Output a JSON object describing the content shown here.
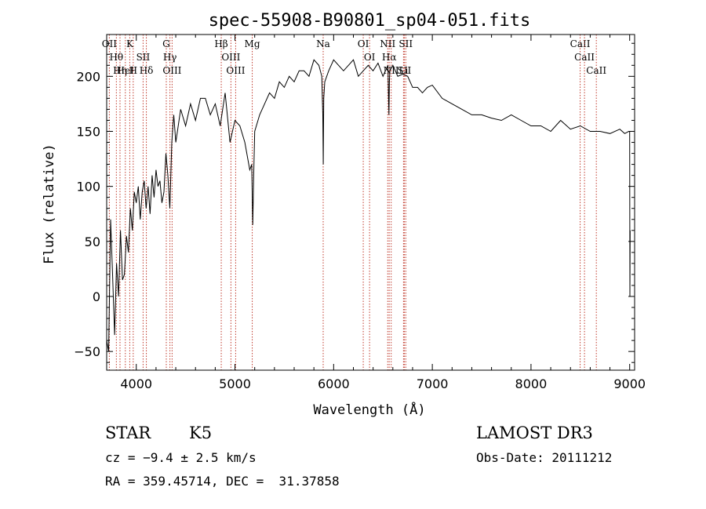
{
  "chart_data": {
    "type": "line",
    "title": "spec-55908-B90801_sp04-051.fits",
    "xlabel": "Wavelength (Å)",
    "ylabel": "Flux (relative)",
    "xlim": [
      3700,
      9050
    ],
    "ylim": [
      -67,
      238
    ],
    "xticks": [
      4000,
      5000,
      6000,
      7000,
      8000,
      9000
    ],
    "yticks": [
      -50,
      0,
      50,
      100,
      150,
      200
    ],
    "series": [
      {
        "name": "spectrum",
        "x": [
          3700,
          3720,
          3740,
          3760,
          3780,
          3800,
          3820,
          3840,
          3860,
          3880,
          3900,
          3920,
          3940,
          3960,
          3980,
          4000,
          4020,
          4040,
          4060,
          4080,
          4100,
          4120,
          4140,
          4160,
          4180,
          4200,
          4220,
          4240,
          4260,
          4280,
          4300,
          4320,
          4340,
          4360,
          4380,
          4400,
          4450,
          4500,
          4550,
          4600,
          4650,
          4700,
          4750,
          4800,
          4850,
          4900,
          4950,
          5000,
          5050,
          5100,
          5150,
          5170,
          5180,
          5190,
          5200,
          5250,
          5300,
          5350,
          5400,
          5450,
          5500,
          5550,
          5600,
          5650,
          5700,
          5750,
          5800,
          5850,
          5880,
          5890,
          5895,
          5900,
          5910,
          5950,
          6000,
          6050,
          6100,
          6150,
          6200,
          6250,
          6300,
          6350,
          6400,
          6450,
          6500,
          6550,
          6560,
          6565,
          6570,
          6600,
          6650,
          6700,
          6750,
          6800,
          6850,
          6900,
          6950,
          7000,
          7100,
          7200,
          7300,
          7400,
          7500,
          7600,
          7700,
          7800,
          7900,
          8000,
          8100,
          8200,
          8300,
          8400,
          8500,
          8600,
          8700,
          8800,
          8900,
          8950,
          8990,
          9000,
          9002,
          9005
        ],
        "y": [
          -40,
          -50,
          70,
          20,
          -35,
          30,
          0,
          60,
          15,
          20,
          55,
          40,
          80,
          60,
          95,
          85,
          100,
          70,
          95,
          105,
          80,
          100,
          75,
          110,
          90,
          115,
          100,
          105,
          85,
          95,
          130,
          110,
          80,
          140,
          165,
          140,
          170,
          155,
          175,
          160,
          180,
          180,
          165,
          175,
          155,
          185,
          140,
          160,
          155,
          140,
          115,
          120,
          65,
          110,
          150,
          165,
          175,
          185,
          180,
          195,
          190,
          200,
          195,
          205,
          205,
          200,
          215,
          210,
          200,
          165,
          120,
          180,
          195,
          205,
          215,
          210,
          205,
          210,
          215,
          200,
          205,
          210,
          205,
          212,
          200,
          210,
          165,
          195,
          205,
          210,
          200,
          202,
          200,
          190,
          190,
          185,
          190,
          192,
          180,
          175,
          170,
          165,
          165,
          162,
          160,
          165,
          160,
          155,
          155,
          150,
          160,
          152,
          155,
          150,
          150,
          148,
          152,
          148,
          150,
          150,
          0,
          60
        ]
      }
    ],
    "lines": [
      {
        "wave": 3727,
        "labels": [
          "OII"
        ]
      },
      {
        "wave": 3798,
        "labels": [
          "Hθ"
        ]
      },
      {
        "wave": 3835,
        "labels": [
          "Hη"
        ]
      },
      {
        "wave": 3889,
        "labels": [
          "HeI"
        ]
      },
      {
        "wave": 3934,
        "labels": [
          "K"
        ]
      },
      {
        "wave": 3969,
        "labels": [
          "H"
        ]
      },
      {
        "wave": 4069,
        "labels": [
          "SII"
        ]
      },
      {
        "wave": 4102,
        "labels": [
          "Hδ"
        ]
      },
      {
        "wave": 4304,
        "labels": [
          "G"
        ]
      },
      {
        "wave": 4341,
        "labels": [
          "Hγ"
        ]
      },
      {
        "wave": 4363,
        "labels": [
          "OIII"
        ]
      },
      {
        "wave": 4861,
        "labels": [
          "Hβ"
        ]
      },
      {
        "wave": 4959,
        "labels": [
          "OIII"
        ]
      },
      {
        "wave": 5007,
        "labels": [
          "OIII"
        ]
      },
      {
        "wave": 5175,
        "labels": [
          "Mg"
        ]
      },
      {
        "wave": 5894,
        "labels": [
          "Na"
        ]
      },
      {
        "wave": 6300,
        "labels": [
          "OI"
        ]
      },
      {
        "wave": 6364,
        "labels": [
          "OI"
        ]
      },
      {
        "wave": 6548,
        "labels": [
          "NII"
        ]
      },
      {
        "wave": 6563,
        "labels": [
          "Hα"
        ]
      },
      {
        "wave": 6583,
        "labels": [
          "NII"
        ]
      },
      {
        "wave": 6708,
        "labels": [
          "Li"
        ]
      },
      {
        "wave": 6716,
        "labels": [
          "SII"
        ]
      },
      {
        "wave": 6731,
        "labels": [
          "SII"
        ]
      },
      {
        "wave": 8498,
        "labels": [
          "CaII"
        ]
      },
      {
        "wave": 8542,
        "labels": [
          "CaII"
        ]
      },
      {
        "wave": 8662,
        "labels": [
          "CaII"
        ]
      }
    ]
  },
  "info": {
    "object_class": "STAR",
    "subclass": "K5",
    "survey": "LAMOST DR3",
    "cz": "cz = −9.4 ± 2.5 km/s",
    "obs_date": "Obs-Date: 20111212",
    "coords": "RA = 359.45714, DEC =  31.37858"
  }
}
